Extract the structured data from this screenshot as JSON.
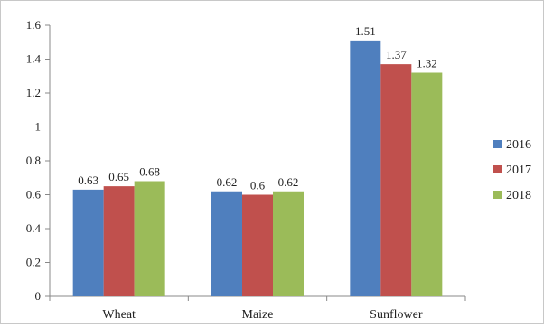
{
  "chart_data": {
    "type": "bar",
    "categories": [
      "Wheat",
      "Maize",
      "Sunflower"
    ],
    "series": [
      {
        "name": "2016",
        "values": [
          0.63,
          0.62,
          1.51
        ],
        "color": "#4f7fbe"
      },
      {
        "name": "2017",
        "values": [
          0.65,
          0.6,
          1.37
        ],
        "color": "#c0504d"
      },
      {
        "name": "2018",
        "values": [
          0.68,
          0.62,
          1.32
        ],
        "color": "#9bbb59"
      }
    ],
    "data_labels": [
      [
        "0.63",
        "0.65",
        "0.68"
      ],
      [
        "0.62",
        "0.6",
        "0.62"
      ],
      [
        "1.51",
        "1.37",
        "1.32"
      ]
    ],
    "yticks": [
      "0",
      "0.2",
      "0.4",
      "0.6",
      "0.8",
      "1",
      "1.2",
      "1.4",
      "1.6"
    ],
    "ylim": [
      0,
      1.6
    ],
    "grid": false,
    "legend_position": "right"
  }
}
